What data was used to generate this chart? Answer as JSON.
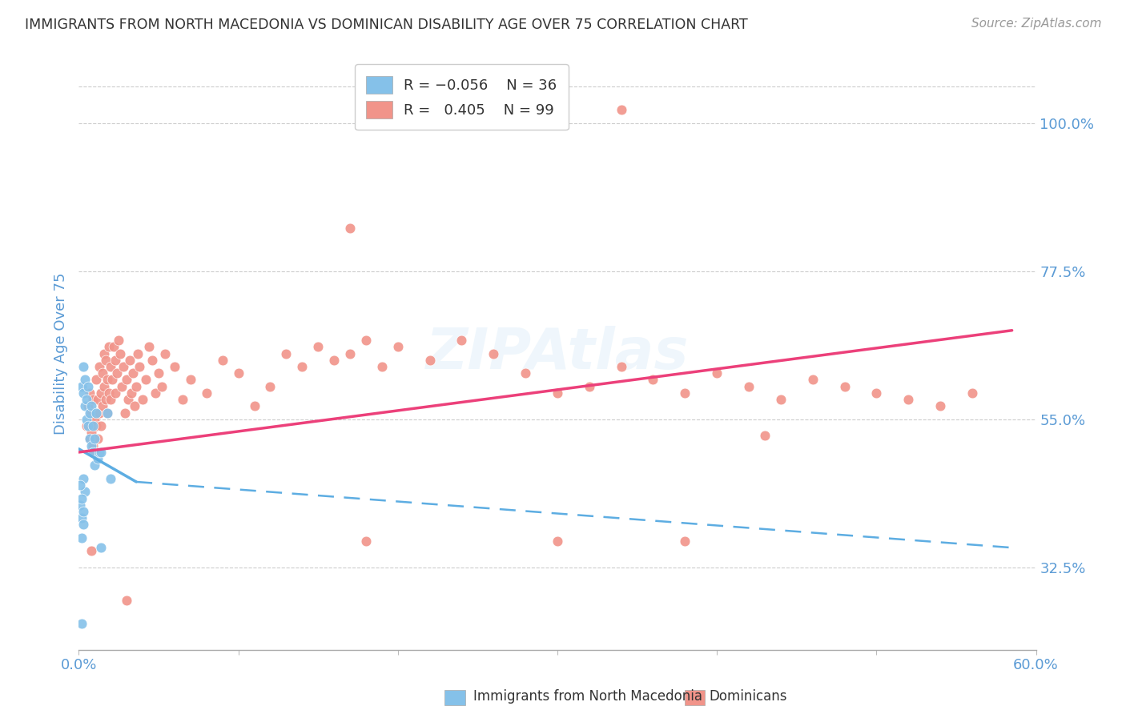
{
  "title": "IMMIGRANTS FROM NORTH MACEDONIA VS DOMINICAN DISABILITY AGE OVER 75 CORRELATION CHART",
  "source": "Source: ZipAtlas.com",
  "ylabel": "Disability Age Over 75",
  "xlim": [
    0.0,
    0.6
  ],
  "ylim": [
    0.2,
    1.1
  ],
  "yticks": [
    0.325,
    0.55,
    0.775,
    1.0
  ],
  "ytick_labels": [
    "32.5%",
    "55.0%",
    "77.5%",
    "100.0%"
  ],
  "xticks": [
    0.0,
    0.1,
    0.2,
    0.3,
    0.4,
    0.5,
    0.6
  ],
  "xtick_labels": [
    "0.0%",
    "",
    "",
    "",
    "",
    "",
    "60.0%"
  ],
  "color_blue": "#85c1e9",
  "color_pink": "#f1948a",
  "color_blue_line": "#5dade2",
  "color_pink_line": "#ec407a",
  "watermark_color": "#85c1e9",
  "title_color": "#333333",
  "axis_label_color": "#5b9bd5",
  "tick_color": "#5b9bd5",
  "grid_color": "#cccccc",
  "blue_scatter": [
    [
      0.002,
      0.6
    ],
    [
      0.003,
      0.63
    ],
    [
      0.003,
      0.59
    ],
    [
      0.004,
      0.61
    ],
    [
      0.004,
      0.57
    ],
    [
      0.005,
      0.58
    ],
    [
      0.005,
      0.55
    ],
    [
      0.006,
      0.6
    ],
    [
      0.006,
      0.54
    ],
    [
      0.007,
      0.56
    ],
    [
      0.007,
      0.52
    ],
    [
      0.008,
      0.57
    ],
    [
      0.008,
      0.51
    ],
    [
      0.009,
      0.54
    ],
    [
      0.009,
      0.5
    ],
    [
      0.01,
      0.52
    ],
    [
      0.01,
      0.48
    ],
    [
      0.011,
      0.56
    ],
    [
      0.012,
      0.49
    ],
    [
      0.013,
      0.5
    ],
    [
      0.003,
      0.46
    ],
    [
      0.004,
      0.44
    ],
    [
      0.002,
      0.4
    ],
    [
      0.014,
      0.5
    ],
    [
      0.018,
      0.56
    ],
    [
      0.02,
      0.46
    ],
    [
      0.002,
      0.37
    ],
    [
      0.001,
      0.45
    ],
    [
      0.001,
      0.42
    ],
    [
      0.002,
      0.43
    ],
    [
      0.003,
      0.41
    ],
    [
      0.003,
      0.39
    ],
    [
      0.014,
      0.355
    ],
    [
      0.002,
      0.24
    ]
  ],
  "pink_scatter": [
    [
      0.005,
      0.54
    ],
    [
      0.006,
      0.57
    ],
    [
      0.007,
      0.52
    ],
    [
      0.007,
      0.59
    ],
    [
      0.008,
      0.56
    ],
    [
      0.008,
      0.53
    ],
    [
      0.009,
      0.58
    ],
    [
      0.009,
      0.51
    ],
    [
      0.01,
      0.55
    ],
    [
      0.01,
      0.5
    ],
    [
      0.011,
      0.54
    ],
    [
      0.011,
      0.61
    ],
    [
      0.012,
      0.58
    ],
    [
      0.012,
      0.52
    ],
    [
      0.013,
      0.56
    ],
    [
      0.013,
      0.63
    ],
    [
      0.014,
      0.59
    ],
    [
      0.014,
      0.54
    ],
    [
      0.015,
      0.57
    ],
    [
      0.015,
      0.62
    ],
    [
      0.016,
      0.65
    ],
    [
      0.016,
      0.6
    ],
    [
      0.017,
      0.58
    ],
    [
      0.017,
      0.64
    ],
    [
      0.018,
      0.61
    ],
    [
      0.018,
      0.56
    ],
    [
      0.019,
      0.59
    ],
    [
      0.019,
      0.66
    ],
    [
      0.02,
      0.63
    ],
    [
      0.02,
      0.58
    ],
    [
      0.021,
      0.61
    ],
    [
      0.022,
      0.66
    ],
    [
      0.023,
      0.64
    ],
    [
      0.023,
      0.59
    ],
    [
      0.024,
      0.62
    ],
    [
      0.025,
      0.67
    ],
    [
      0.026,
      0.65
    ],
    [
      0.027,
      0.6
    ],
    [
      0.028,
      0.63
    ],
    [
      0.029,
      0.56
    ],
    [
      0.03,
      0.61
    ],
    [
      0.031,
      0.58
    ],
    [
      0.032,
      0.64
    ],
    [
      0.033,
      0.59
    ],
    [
      0.034,
      0.62
    ],
    [
      0.035,
      0.57
    ],
    [
      0.036,
      0.6
    ],
    [
      0.037,
      0.65
    ],
    [
      0.038,
      0.63
    ],
    [
      0.04,
      0.58
    ],
    [
      0.042,
      0.61
    ],
    [
      0.044,
      0.66
    ],
    [
      0.046,
      0.64
    ],
    [
      0.048,
      0.59
    ],
    [
      0.05,
      0.62
    ],
    [
      0.052,
      0.6
    ],
    [
      0.054,
      0.65
    ],
    [
      0.06,
      0.63
    ],
    [
      0.065,
      0.58
    ],
    [
      0.07,
      0.61
    ],
    [
      0.08,
      0.59
    ],
    [
      0.09,
      0.64
    ],
    [
      0.1,
      0.62
    ],
    [
      0.11,
      0.57
    ],
    [
      0.12,
      0.6
    ],
    [
      0.13,
      0.65
    ],
    [
      0.14,
      0.63
    ],
    [
      0.15,
      0.66
    ],
    [
      0.16,
      0.64
    ],
    [
      0.17,
      0.65
    ],
    [
      0.18,
      0.67
    ],
    [
      0.19,
      0.63
    ],
    [
      0.2,
      0.66
    ],
    [
      0.22,
      0.64
    ],
    [
      0.24,
      0.67
    ],
    [
      0.26,
      0.65
    ],
    [
      0.28,
      0.62
    ],
    [
      0.3,
      0.59
    ],
    [
      0.32,
      0.6
    ],
    [
      0.34,
      0.63
    ],
    [
      0.36,
      0.61
    ],
    [
      0.38,
      0.59
    ],
    [
      0.4,
      0.62
    ],
    [
      0.42,
      0.6
    ],
    [
      0.44,
      0.58
    ],
    [
      0.46,
      0.61
    ],
    [
      0.48,
      0.6
    ],
    [
      0.5,
      0.59
    ],
    [
      0.52,
      0.58
    ],
    [
      0.54,
      0.57
    ],
    [
      0.56,
      0.59
    ],
    [
      0.008,
      0.35
    ],
    [
      0.03,
      0.275
    ],
    [
      0.18,
      0.365
    ],
    [
      0.3,
      0.365
    ],
    [
      0.38,
      0.365
    ],
    [
      0.2,
      1.02
    ],
    [
      0.34,
      1.02
    ],
    [
      0.17,
      0.84
    ],
    [
      0.43,
      0.525
    ]
  ],
  "blue_line": {
    "x0": 0.0,
    "y0": 0.505,
    "x1": 0.036,
    "y1": 0.455,
    "xd_end": 0.585,
    "yd_end": 0.355
  },
  "pink_line": {
    "x0": 0.0,
    "y0": 0.5,
    "x1": 0.585,
    "y1": 0.685
  }
}
